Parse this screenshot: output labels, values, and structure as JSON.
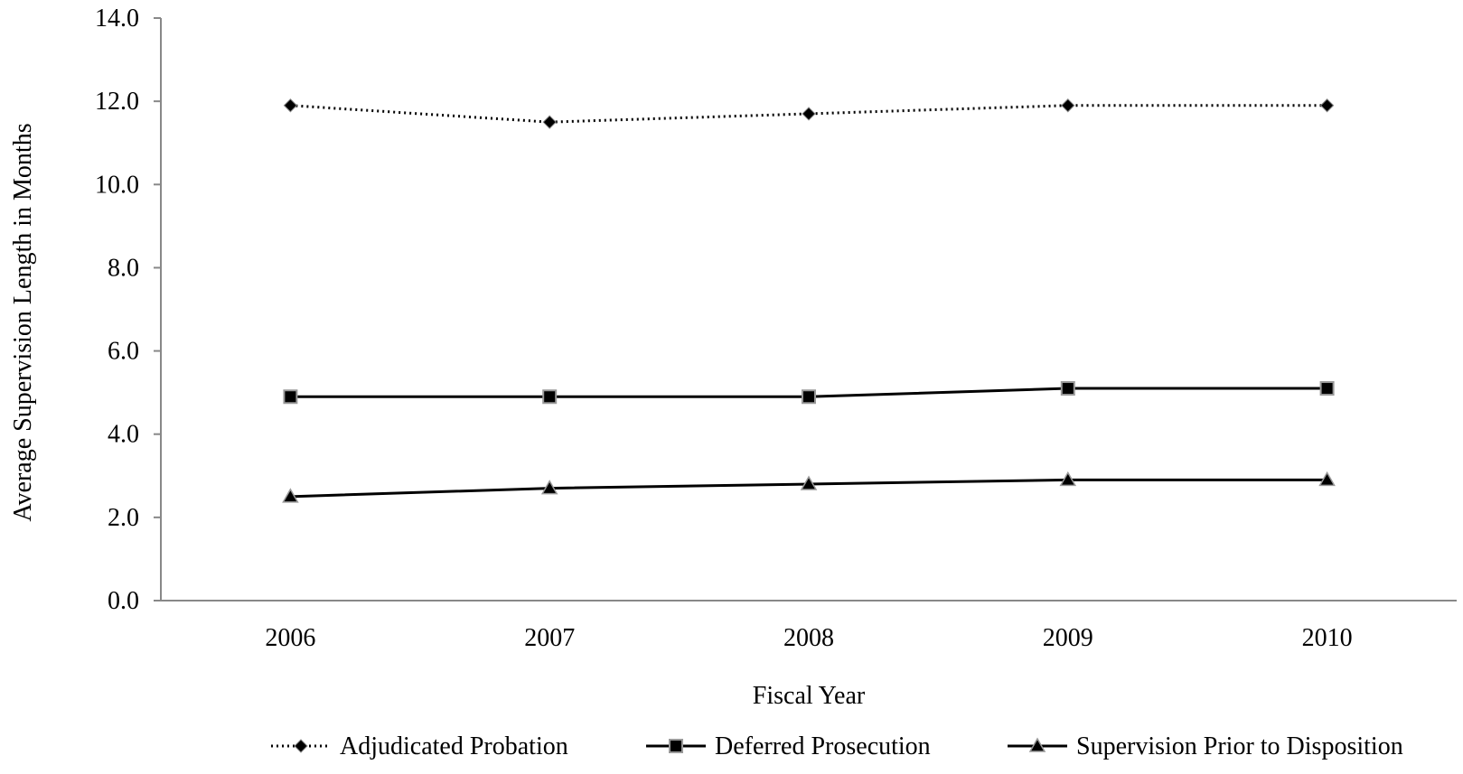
{
  "chart_data": {
    "type": "line",
    "title": "",
    "xlabel": "Fiscal Year",
    "ylabel": "Average Supervision Length in Months",
    "categories": [
      "2006",
      "2007",
      "2008",
      "2009",
      "2010"
    ],
    "ylim": [
      0,
      14
    ],
    "yticks": [
      "0.0",
      "2.0",
      "4.0",
      "6.0",
      "8.0",
      "10.0",
      "12.0",
      "14.0"
    ],
    "grid": false,
    "legend_position": "bottom",
    "series": [
      {
        "name": "Adjudicated Probation",
        "values": [
          11.9,
          11.5,
          11.7,
          11.9,
          11.9
        ],
        "line_style": "dotted",
        "marker": "diamond",
        "color": "#000000"
      },
      {
        "name": "Deferred Prosecution",
        "values": [
          4.9,
          4.9,
          4.9,
          5.1,
          5.1
        ],
        "line_style": "solid",
        "marker": "square",
        "color": "#000000"
      },
      {
        "name": "Supervision Prior to Disposition",
        "values": [
          2.5,
          2.7,
          2.8,
          2.9,
          2.9
        ],
        "line_style": "solid",
        "marker": "triangle",
        "color": "#000000"
      }
    ]
  }
}
